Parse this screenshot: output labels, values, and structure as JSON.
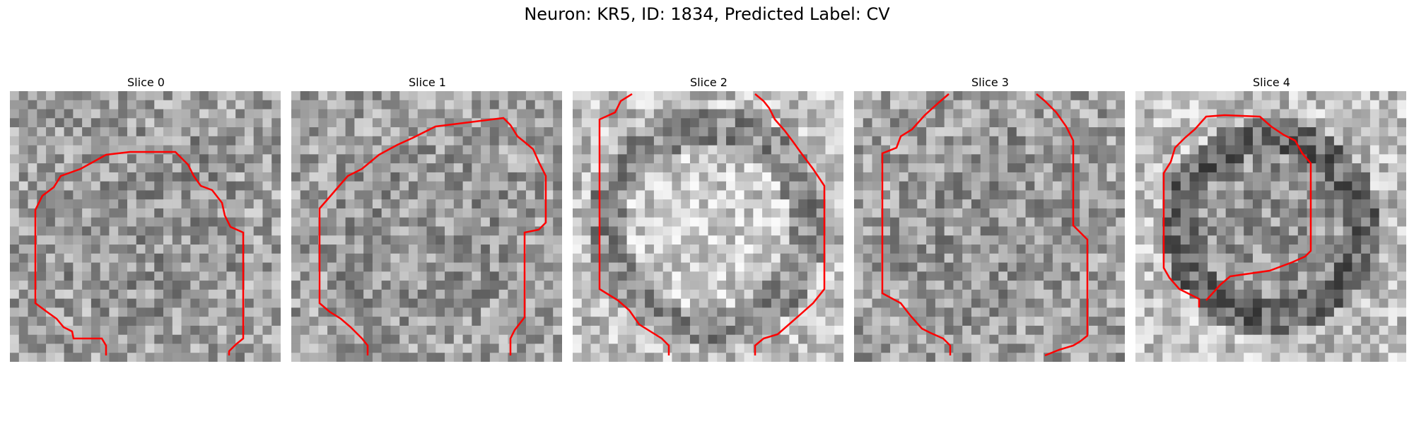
{
  "figure": {
    "title": "Neuron: KR5, ID: 1834, Predicted Label: CV"
  },
  "panels": [
    {
      "title": "Slice 0"
    },
    {
      "title": "Slice 1"
    },
    {
      "title": "Slice 2"
    },
    {
      "title": "Slice 3"
    },
    {
      "title": "Slice 4"
    }
  ],
  "colors": {
    "contour": "#ff0000",
    "background": "#ffffff",
    "colormap": "gray"
  }
}
